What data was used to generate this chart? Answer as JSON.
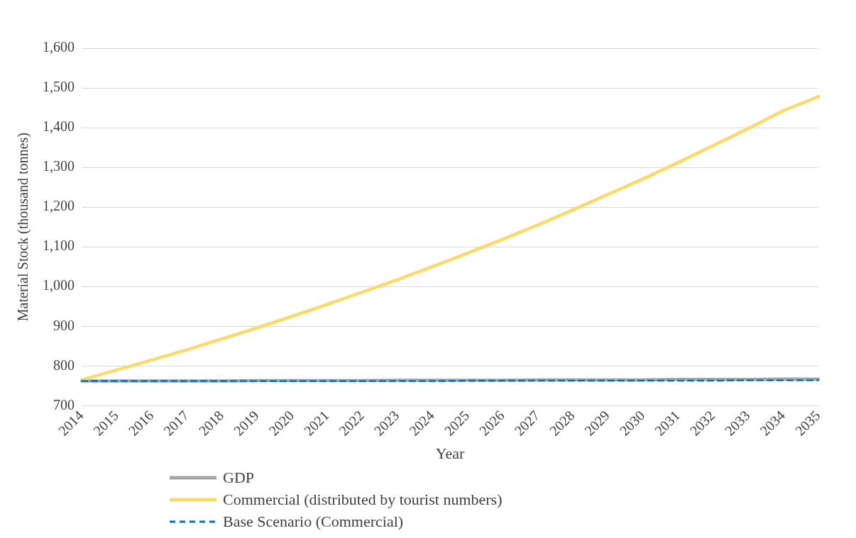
{
  "chart_data": {
    "type": "line",
    "xlabel": "Year",
    "ylabel": "Material Stock (thousand tonnes)",
    "categories": [
      "2014",
      "2015",
      "2016",
      "2017",
      "2018",
      "2019",
      "2020",
      "2021",
      "2022",
      "2023",
      "2024",
      "2025",
      "2026",
      "2027",
      "2028",
      "2029",
      "2030",
      "2031",
      "2032",
      "2033",
      "2034",
      "2035"
    ],
    "series": [
      {
        "name": "GDP",
        "color": "#a5a5a5",
        "values": [
          762,
          762,
          762,
          762,
          762,
          763,
          763,
          763,
          763,
          764,
          764,
          764,
          764,
          765,
          765,
          765,
          765,
          766,
          766,
          766,
          767,
          767
        ]
      },
      {
        "name": "Commercial (distributed by tourist numbers)",
        "color": "#ffd966",
        "values": [
          765,
          790,
          815,
          841,
          868,
          896,
          925,
          955,
          986,
          1017,
          1050,
          1084,
          1119,
          1155,
          1193,
          1232,
          1271,
          1312,
          1355,
          1398,
          1443,
          1478
        ]
      },
      {
        "name": "Base Scenario (Commercial)",
        "color": "#0070c0",
        "line_style": "dashed",
        "values": [
          762,
          762,
          762,
          762,
          762,
          762,
          762,
          762,
          762,
          762,
          762,
          763,
          763,
          763,
          763,
          763,
          763,
          763,
          763,
          764,
          764,
          764
        ]
      }
    ],
    "ylim": [
      700,
      1600
    ],
    "yticks": [
      700,
      800,
      900,
      {
        "value": 1000,
        "label": "1,000"
      },
      {
        "value": 1100,
        "label": "1,100"
      },
      {
        "value": 1200,
        "label": "1,200"
      },
      {
        "value": 1300,
        "label": "1,300"
      },
      {
        "value": 1400,
        "label": "1,400"
      },
      {
        "value": 1500,
        "label": "1,500"
      },
      {
        "value": 1600,
        "label": "1,600"
      }
    ],
    "grid": "y",
    "legend": "bottom",
    "marker": "none"
  }
}
